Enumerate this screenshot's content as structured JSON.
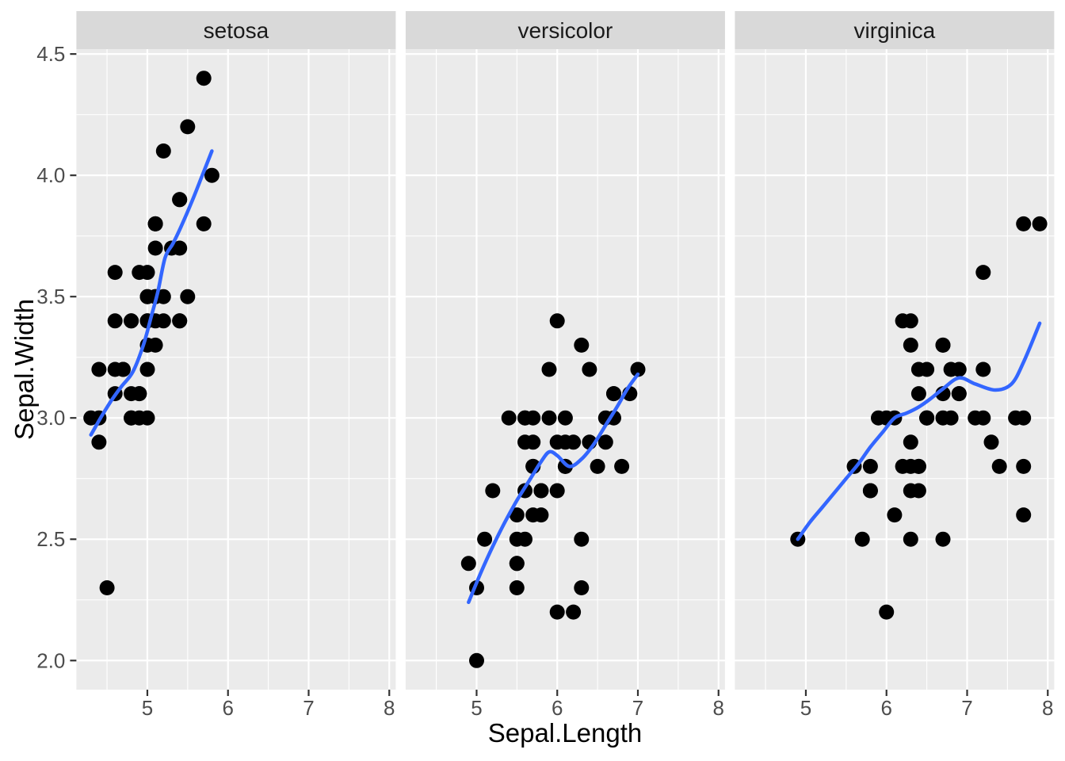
{
  "chart_data": {
    "type": "scatter",
    "title": "",
    "xlabel": "Sepal.Length",
    "ylabel": "Sepal.Width",
    "xlim": [
      4.12,
      8.08
    ],
    "ylim": [
      1.88,
      4.52
    ],
    "x_ticks": [
      5,
      6,
      7,
      8
    ],
    "x_tick_labels": [
      "5",
      "6",
      "7",
      "8"
    ],
    "y_ticks": [
      2.0,
      2.5,
      3.0,
      3.5,
      4.0,
      4.5
    ],
    "y_tick_labels": [
      "2.0",
      "2.5",
      "3.0",
      "3.5",
      "4.0",
      "4.5"
    ],
    "x_minor": [
      4.5,
      5.5,
      6.5,
      7.5
    ],
    "y_minor": [
      2.25,
      2.75,
      3.25,
      3.75,
      4.25
    ],
    "grid": true,
    "legend_position": "none",
    "facets": [
      {
        "label": "setosa",
        "points": [
          [
            5.1,
            3.5
          ],
          [
            4.9,
            3.0
          ],
          [
            4.7,
            3.2
          ],
          [
            4.6,
            3.1
          ],
          [
            5.0,
            3.6
          ],
          [
            5.4,
            3.9
          ],
          [
            4.6,
            3.4
          ],
          [
            5.0,
            3.4
          ],
          [
            4.4,
            2.9
          ],
          [
            4.9,
            3.1
          ],
          [
            5.4,
            3.7
          ],
          [
            4.8,
            3.4
          ],
          [
            4.8,
            3.0
          ],
          [
            4.3,
            3.0
          ],
          [
            5.8,
            4.0
          ],
          [
            5.7,
            4.4
          ],
          [
            5.4,
            3.9
          ],
          [
            5.1,
            3.5
          ],
          [
            5.7,
            3.8
          ],
          [
            5.1,
            3.8
          ],
          [
            5.4,
            3.4
          ],
          [
            5.1,
            3.7
          ],
          [
            4.6,
            3.6
          ],
          [
            5.1,
            3.3
          ],
          [
            4.8,
            3.4
          ],
          [
            5.0,
            3.0
          ],
          [
            5.0,
            3.4
          ],
          [
            5.2,
            3.5
          ],
          [
            5.2,
            3.4
          ],
          [
            4.7,
            3.2
          ],
          [
            4.8,
            3.1
          ],
          [
            5.4,
            3.4
          ],
          [
            5.2,
            4.1
          ],
          [
            5.5,
            4.2
          ],
          [
            4.9,
            3.1
          ],
          [
            5.0,
            3.2
          ],
          [
            5.5,
            3.5
          ],
          [
            4.9,
            3.6
          ],
          [
            4.4,
            3.0
          ],
          [
            5.1,
            3.4
          ],
          [
            5.0,
            3.5
          ],
          [
            4.5,
            2.3
          ],
          [
            4.4,
            3.2
          ],
          [
            5.0,
            3.5
          ],
          [
            5.1,
            3.8
          ],
          [
            4.8,
            3.0
          ],
          [
            5.1,
            3.8
          ],
          [
            4.6,
            3.2
          ],
          [
            5.3,
            3.7
          ],
          [
            5.0,
            3.3
          ]
        ],
        "smooth": [
          [
            4.3,
            2.93
          ],
          [
            4.42,
            3.0
          ],
          [
            4.55,
            3.07
          ],
          [
            4.68,
            3.13
          ],
          [
            4.82,
            3.19
          ],
          [
            4.95,
            3.3
          ],
          [
            5.05,
            3.42
          ],
          [
            5.13,
            3.52
          ],
          [
            5.22,
            3.66
          ],
          [
            5.32,
            3.72
          ],
          [
            5.42,
            3.79
          ],
          [
            5.55,
            3.89
          ],
          [
            5.67,
            3.99
          ],
          [
            5.8,
            4.1
          ]
        ]
      },
      {
        "label": "versicolor",
        "points": [
          [
            7.0,
            3.2
          ],
          [
            6.4,
            3.2
          ],
          [
            6.9,
            3.1
          ],
          [
            5.5,
            2.3
          ],
          [
            6.5,
            2.8
          ],
          [
            5.7,
            2.8
          ],
          [
            6.3,
            3.3
          ],
          [
            4.9,
            2.4
          ],
          [
            6.6,
            2.9
          ],
          [
            5.2,
            2.7
          ],
          [
            5.0,
            2.0
          ],
          [
            5.9,
            3.0
          ],
          [
            6.0,
            2.2
          ],
          [
            6.1,
            2.9
          ],
          [
            5.6,
            2.9
          ],
          [
            6.7,
            3.1
          ],
          [
            5.6,
            3.0
          ],
          [
            5.8,
            2.7
          ],
          [
            6.2,
            2.2
          ],
          [
            5.6,
            2.5
          ],
          [
            5.9,
            3.2
          ],
          [
            6.1,
            2.8
          ],
          [
            6.3,
            2.5
          ],
          [
            6.1,
            2.8
          ],
          [
            6.4,
            2.9
          ],
          [
            6.6,
            3.0
          ],
          [
            6.8,
            2.8
          ],
          [
            6.7,
            3.0
          ],
          [
            6.0,
            2.9
          ],
          [
            5.7,
            2.6
          ],
          [
            5.5,
            2.4
          ],
          [
            5.5,
            2.4
          ],
          [
            5.8,
            2.7
          ],
          [
            6.0,
            2.7
          ],
          [
            5.4,
            3.0
          ],
          [
            6.0,
            3.4
          ],
          [
            6.7,
            3.1
          ],
          [
            6.3,
            2.3
          ],
          [
            5.6,
            3.0
          ],
          [
            5.5,
            2.5
          ],
          [
            5.5,
            2.6
          ],
          [
            6.1,
            3.0
          ],
          [
            5.8,
            2.6
          ],
          [
            5.0,
            2.3
          ],
          [
            5.6,
            2.7
          ],
          [
            5.7,
            3.0
          ],
          [
            5.7,
            2.9
          ],
          [
            6.2,
            2.9
          ],
          [
            5.1,
            2.5
          ],
          [
            5.7,
            2.8
          ]
        ],
        "smooth": [
          [
            4.9,
            2.24
          ],
          [
            5.05,
            2.36
          ],
          [
            5.2,
            2.47
          ],
          [
            5.35,
            2.57
          ],
          [
            5.5,
            2.66
          ],
          [
            5.65,
            2.74
          ],
          [
            5.8,
            2.82
          ],
          [
            5.9,
            2.86
          ],
          [
            6.0,
            2.845
          ],
          [
            6.15,
            2.8
          ],
          [
            6.3,
            2.83
          ],
          [
            6.45,
            2.89
          ],
          [
            6.6,
            2.97
          ],
          [
            6.75,
            3.05
          ],
          [
            6.87,
            3.12
          ],
          [
            7.0,
            3.18
          ]
        ]
      },
      {
        "label": "virginica",
        "points": [
          [
            6.3,
            3.3
          ],
          [
            5.8,
            2.7
          ],
          [
            7.1,
            3.0
          ],
          [
            6.3,
            2.9
          ],
          [
            6.5,
            3.0
          ],
          [
            7.6,
            3.0
          ],
          [
            4.9,
            2.5
          ],
          [
            7.3,
            2.9
          ],
          [
            6.7,
            2.5
          ],
          [
            7.2,
            3.6
          ],
          [
            6.5,
            3.2
          ],
          [
            6.4,
            2.7
          ],
          [
            6.8,
            3.0
          ],
          [
            5.7,
            2.5
          ],
          [
            5.8,
            2.8
          ],
          [
            6.4,
            3.2
          ],
          [
            6.5,
            3.0
          ],
          [
            7.7,
            3.8
          ],
          [
            7.7,
            2.6
          ],
          [
            6.0,
            2.2
          ],
          [
            6.9,
            3.2
          ],
          [
            5.6,
            2.8
          ],
          [
            7.7,
            2.8
          ],
          [
            6.3,
            2.7
          ],
          [
            6.7,
            3.3
          ],
          [
            7.2,
            3.2
          ],
          [
            6.2,
            2.8
          ],
          [
            6.1,
            3.0
          ],
          [
            6.4,
            2.8
          ],
          [
            7.2,
            3.0
          ],
          [
            7.4,
            2.8
          ],
          [
            7.9,
            3.8
          ],
          [
            6.4,
            2.8
          ],
          [
            6.3,
            2.8
          ],
          [
            6.1,
            2.6
          ],
          [
            7.7,
            3.0
          ],
          [
            6.3,
            3.4
          ],
          [
            6.4,
            3.1
          ],
          [
            6.0,
            3.0
          ],
          [
            6.9,
            3.1
          ],
          [
            6.7,
            3.1
          ],
          [
            6.9,
            3.1
          ],
          [
            5.8,
            2.7
          ],
          [
            6.8,
            3.2
          ],
          [
            6.7,
            3.3
          ],
          [
            6.7,
            3.0
          ],
          [
            6.3,
            2.5
          ],
          [
            6.5,
            3.0
          ],
          [
            6.2,
            3.4
          ],
          [
            5.9,
            3.0
          ]
        ],
        "smooth": [
          [
            4.9,
            2.5
          ],
          [
            5.05,
            2.57
          ],
          [
            5.2,
            2.63
          ],
          [
            5.35,
            2.69
          ],
          [
            5.5,
            2.75
          ],
          [
            5.65,
            2.81
          ],
          [
            5.8,
            2.88
          ],
          [
            5.95,
            2.94
          ],
          [
            6.1,
            3.0
          ],
          [
            6.25,
            3.02
          ],
          [
            6.4,
            3.045
          ],
          [
            6.55,
            3.08
          ],
          [
            6.7,
            3.12
          ],
          [
            6.9,
            3.165
          ],
          [
            7.1,
            3.14
          ],
          [
            7.35,
            3.115
          ],
          [
            7.55,
            3.14
          ],
          [
            7.7,
            3.23
          ],
          [
            7.9,
            3.39
          ]
        ]
      }
    ],
    "style": {
      "point_color": "#000000",
      "smooth_color": "#3366FF",
      "panel_bg": "#EBEBEB",
      "strip_bg": "#D9D9D9",
      "grid_color": "#FFFFFF",
      "tick_mark_color": "#333333",
      "tick_label_color": "#4D4D4D",
      "strip_text_color": "#1A1A1A",
      "axis_title_color": "#000000"
    }
  }
}
